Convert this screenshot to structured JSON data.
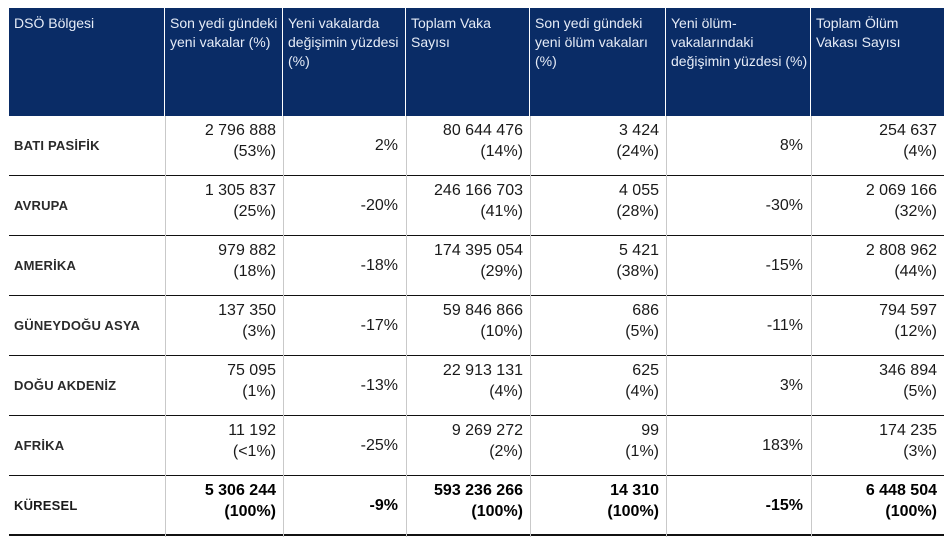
{
  "headers": {
    "region": "DSÖ Bölgesi",
    "new_cases": "Son yedi gündeki yeni vakalar (%)",
    "new_cases_change": "Yeni vakalarda değişimin yüzdesi (%)",
    "total_cases": "Toplam Vaka Sayısı",
    "new_deaths": "Son yedi gündeki yeni ölüm vakaları (%)",
    "new_deaths_change": "Yeni ölüm-vakalarındaki değişimin yüzdesi (%)",
    "total_deaths": "Toplam Ölüm Vakası Sayısı"
  },
  "rows": [
    {
      "region": "BATI PASİFİK",
      "new_cases": "2 796 888",
      "new_cases_pct": "(53%)",
      "new_cases_change": "2%",
      "total_cases": "80 644 476",
      "total_cases_pct": "(14%)",
      "new_deaths": "3 424",
      "new_deaths_pct": "(24%)",
      "new_deaths_change": "8%",
      "total_deaths": "254 637",
      "total_deaths_pct": "(4%)"
    },
    {
      "region": "AVRUPA",
      "new_cases": "1 305 837",
      "new_cases_pct": "(25%)",
      "new_cases_change": "-20%",
      "total_cases": "246 166 703",
      "total_cases_pct": "(41%)",
      "new_deaths": "4 055",
      "new_deaths_pct": "(28%)",
      "new_deaths_change": "-30%",
      "total_deaths": "2 069 166",
      "total_deaths_pct": "(32%)"
    },
    {
      "region": "AMERİKA",
      "new_cases": "979 882",
      "new_cases_pct": "(18%)",
      "new_cases_change": "-18%",
      "total_cases": "174 395 054",
      "total_cases_pct": "(29%)",
      "new_deaths": "5 421",
      "new_deaths_pct": "(38%)",
      "new_deaths_change": "-15%",
      "total_deaths": "2 808 962",
      "total_deaths_pct": "(44%)"
    },
    {
      "region": "GÜNEYDOĞU ASYA",
      "new_cases": "137 350",
      "new_cases_pct": "(3%)",
      "new_cases_change": "-17%",
      "total_cases": "59 846 866",
      "total_cases_pct": "(10%)",
      "new_deaths": "686",
      "new_deaths_pct": "(5%)",
      "new_deaths_change": "-11%",
      "total_deaths": "794 597",
      "total_deaths_pct": "(12%)"
    },
    {
      "region": "DOĞU AKDENİZ",
      "new_cases": "75 095",
      "new_cases_pct": "(1%)",
      "new_cases_change": "-13%",
      "total_cases": "22 913 131",
      "total_cases_pct": "(4%)",
      "new_deaths": "625",
      "new_deaths_pct": "(4%)",
      "new_deaths_change": "3%",
      "total_deaths": "346 894",
      "total_deaths_pct": "(5%)"
    },
    {
      "region": "AFRİKA",
      "new_cases": "11 192",
      "new_cases_pct": "(<1%)",
      "new_cases_change": "-25%",
      "total_cases": "9 269 272",
      "total_cases_pct": "(2%)",
      "new_deaths": "99",
      "new_deaths_pct": "(1%)",
      "new_deaths_change": "183%",
      "total_deaths": "174 235",
      "total_deaths_pct": "(3%)"
    },
    {
      "region": "KÜRESEL",
      "new_cases": "5 306 244",
      "new_cases_pct": "(100%)",
      "new_cases_change": "-9%",
      "total_cases": "593 236 266",
      "total_cases_pct": "(100%)",
      "new_deaths": "14 310",
      "new_deaths_pct": "(100%)",
      "new_deaths_change": "-15%",
      "total_deaths": "6 448 504",
      "total_deaths_pct": "(100%)"
    }
  ]
}
